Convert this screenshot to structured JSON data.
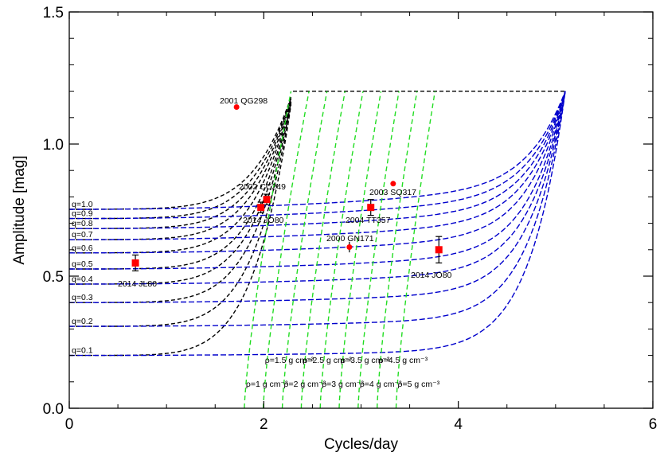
{
  "chart_data": {
    "type": "scatter",
    "xlabel": "Cycles/day",
    "ylabel": "Amplitude [mag]",
    "xlim": [
      0,
      6
    ],
    "ylim": [
      0,
      1.5
    ],
    "x_ticks": [
      0,
      2,
      4,
      6
    ],
    "x_tick_labels": [
      "0",
      "2",
      "4",
      "6"
    ],
    "y_ticks": [
      0.0,
      0.5,
      1.0,
      1.5
    ],
    "y_tick_labels": [
      "0.0",
      "0.5",
      "1.0",
      "1.5"
    ],
    "grid": false,
    "colors": {
      "point": "#ff0000",
      "q_curve": "#0000cc",
      "density_curve": "#22dd22",
      "envelope": "#000000"
    },
    "square_points": [
      {
        "label": "2002 CC249",
        "x": 2.03,
        "y": 0.79,
        "err": 0.02
      },
      {
        "label": "2014 JO80",
        "x": 1.97,
        "y": 0.76,
        "err": 0.02
      },
      {
        "label": "2014 JL80",
        "x": 0.68,
        "y": 0.55,
        "err": 0.03
      },
      {
        "label": "2004 TT357",
        "x": 3.1,
        "y": 0.76,
        "err": 0.03
      },
      {
        "label": "2014 JO80",
        "x": 3.8,
        "y": 0.6,
        "err": 0.05
      }
    ],
    "circle_points": [
      {
        "label": "2001 QG298",
        "x": 1.72,
        "y": 1.14
      },
      {
        "label": "2003 SQ317",
        "x": 3.33,
        "y": 0.85
      },
      {
        "label": "2000 GN171",
        "x": 2.88,
        "y": 0.61,
        "err": 0.02
      }
    ],
    "q_curves": [
      {
        "label": "q=1.0",
        "amp": 0.753
      },
      {
        "label": "q=0.9",
        "amp": 0.718
      },
      {
        "label": "q=0.8",
        "amp": 0.68
      },
      {
        "label": "q=0.7",
        "amp": 0.638
      },
      {
        "label": "q=0.6",
        "amp": 0.588
      },
      {
        "label": "q=0.5",
        "amp": 0.527
      },
      {
        "label": "q=0.4",
        "amp": 0.47
      },
      {
        "label": "q=0.3",
        "amp": 0.4
      },
      {
        "label": "q=0.2",
        "amp": 0.31
      },
      {
        "label": "q=0.1",
        "amp": 0.2
      }
    ],
    "density_curves": [
      {
        "label": "ρ=1 g cm⁻³",
        "row": "lower",
        "rho": 1.0
      },
      {
        "label": "ρ=1.5 g cm⁻³",
        "row": "upper",
        "rho": 1.5
      },
      {
        "label": "ρ=2 g cm⁻³",
        "row": "lower",
        "rho": 2.0
      },
      {
        "label": "ρ=2.5 g cm⁻³",
        "row": "upper",
        "rho": 2.5
      },
      {
        "label": "ρ=3 g cm⁻³",
        "row": "lower",
        "rho": 3.0
      },
      {
        "label": "ρ=3.5 g cm⁻³",
        "row": "upper",
        "rho": 3.5
      },
      {
        "label": "ρ=4 g cm⁻³",
        "row": "lower",
        "rho": 4.0
      },
      {
        "label": "ρ=4.5 g cm⁻³",
        "row": "upper",
        "rho": 4.5
      },
      {
        "label": "ρ=5 g cm⁻³",
        "row": "lower",
        "rho": 5.0
      }
    ],
    "envelope_top_amp": 1.2
  }
}
